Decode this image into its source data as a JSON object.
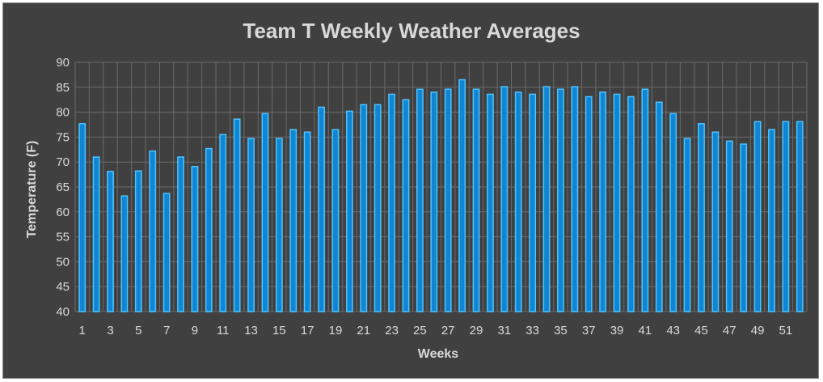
{
  "chart_data": {
    "type": "bar",
    "title": "Team T Weekly Weather Averages",
    "xlabel": "Weeks",
    "ylabel": "Temperature (F)",
    "ylim": [
      40,
      90
    ],
    "ytick_step": 5,
    "grid": true,
    "categories": [
      1,
      2,
      3,
      4,
      5,
      6,
      7,
      8,
      9,
      10,
      11,
      12,
      13,
      14,
      15,
      16,
      17,
      18,
      19,
      20,
      21,
      22,
      23,
      24,
      25,
      26,
      27,
      28,
      29,
      30,
      31,
      32,
      33,
      34,
      35,
      36,
      37,
      38,
      39,
      40,
      41,
      42,
      43,
      44,
      45,
      46,
      47,
      48,
      49,
      50,
      51,
      52
    ],
    "xtick_labels": [
      "1",
      "3",
      "5",
      "7",
      "9",
      "11",
      "13",
      "15",
      "17",
      "19",
      "21",
      "23",
      "25",
      "27",
      "29",
      "31",
      "33",
      "35",
      "37",
      "39",
      "41",
      "43",
      "45",
      "47",
      "49",
      "51"
    ],
    "values": [
      77.7,
      71,
      68.1,
      63.2,
      68.2,
      72.2,
      63.7,
      71,
      69.1,
      72.7,
      75.5,
      78.6,
      74.7,
      79.7,
      74.7,
      76.5,
      76,
      81,
      76.5,
      80.2,
      81.5,
      81.5,
      83.6,
      82.5,
      84.6,
      84,
      84.6,
      86.5,
      84.6,
      83.6,
      85.1,
      84,
      83.6,
      85.1,
      84.6,
      85.1,
      83.1,
      84,
      83.6,
      83.1,
      84.6,
      82,
      79.7,
      74.7,
      77.7,
      76,
      74.2,
      73.6,
      78.1,
      76.5,
      78.1,
      78.1
    ],
    "colors": {
      "bar_fill": "#0e86d4",
      "bar_edge": "#4fc3ff",
      "grid": "#6b6b6b",
      "background": "#404040",
      "text": "#d9d9d9"
    }
  }
}
